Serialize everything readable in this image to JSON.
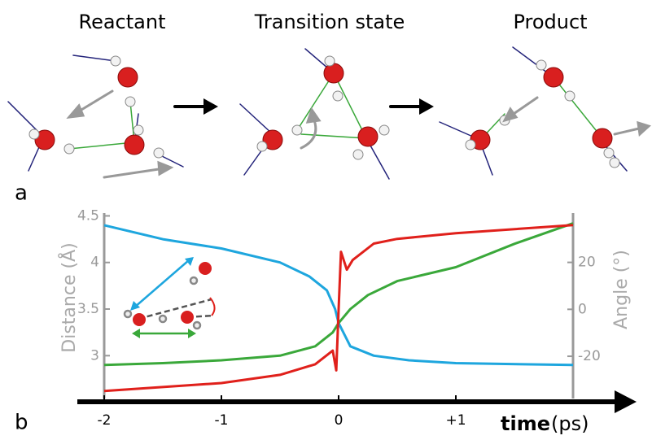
{
  "panel_labels": [
    "a",
    "b"
  ],
  "stage_labels": [
    "Reactant",
    "Transition state",
    "Product"
  ],
  "chart_data": {
    "type": "line",
    "xlabel": [
      "time",
      "(ps)"
    ],
    "ylabel": "Distance (Å)",
    "y2label": "Angle (°)",
    "xlim": [
      -2,
      2
    ],
    "xticks": [
      -2,
      -1,
      0,
      {
        "value": 1,
        "label": "+1"
      }
    ],
    "ylim": [
      2.54,
      4.53
    ],
    "yticks": [
      3,
      3.5,
      4,
      4.5
    ],
    "y2lim": [
      -38,
      41
    ],
    "y2ticks": [
      -20,
      0,
      20
    ],
    "series": [
      {
        "color": "#1ea6de",
        "x": [
          -2,
          -1.5,
          -1,
          -0.5,
          -0.25,
          -0.1,
          -0.03,
          0,
          0.1,
          0.3,
          0.6,
          1,
          2
        ],
        "values": [
          4.4,
          4.25,
          4.15,
          4.0,
          3.85,
          3.7,
          3.5,
          3.35,
          3.1,
          3.0,
          2.95,
          2.92,
          2.9
        ]
      },
      {
        "color": "#3aa83a",
        "x": [
          -2,
          -1.5,
          -1,
          -0.5,
          -0.2,
          -0.05,
          0,
          0.1,
          0.25,
          0.5,
          1,
          1.5,
          2
        ],
        "values": [
          2.9,
          2.92,
          2.95,
          3.0,
          3.1,
          3.25,
          3.35,
          3.5,
          3.65,
          3.8,
          3.95,
          4.2,
          4.42
        ]
      },
      {
        "color": "#e0201b",
        "axis": "y2",
        "x": [
          -2,
          -1,
          -0.5,
          -0.2,
          -0.05,
          -0.02,
          0,
          0.02,
          0.07,
          0.12,
          0.3,
          0.5,
          1,
          2
        ],
        "values": [
          -34.8,
          -31.4,
          -27.9,
          -23.4,
          -17.6,
          -26,
          0,
          24.5,
          16.9,
          21,
          28,
          30,
          32.4,
          35.9
        ]
      }
    ]
  }
}
